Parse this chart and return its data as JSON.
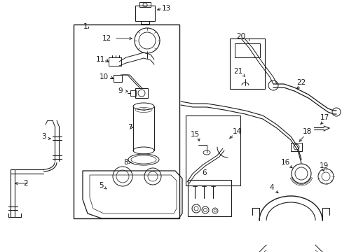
{
  "bg_color": "#ffffff",
  "line_color": "#1a1a1a",
  "figsize": [
    4.89,
    3.6
  ],
  "dpi": 100,
  "font_size": 7.0,
  "lw_main": 0.7,
  "lw_thin": 0.5,
  "lw_thick": 0.9
}
